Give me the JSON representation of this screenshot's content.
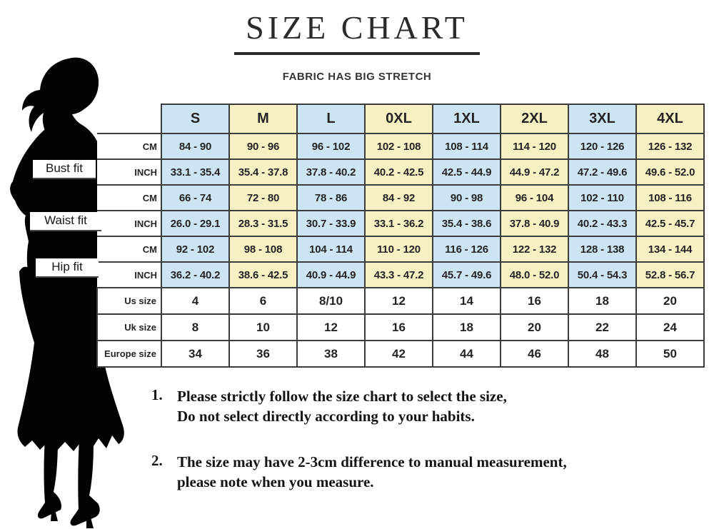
{
  "page": {
    "title": "SIZE CHART",
    "subtitle": "FABRIC HAS BIG STRETCH"
  },
  "colors": {
    "column_blue": "#cde4f3",
    "column_yellow": "#f6f0c3",
    "grid_border": "#3c3c3c",
    "silhouette": "#000000"
  },
  "fit_labels": [
    {
      "id": "bust",
      "label": "Bust fit"
    },
    {
      "id": "waist",
      "label": "Waist fit"
    },
    {
      "id": "hip",
      "label": "Hip fit"
    }
  ],
  "chart_data": {
    "type": "table",
    "title": "SIZE CHART",
    "subtitle": "FABRIC HAS BIG STRETCH",
    "columns": [
      "S",
      "M",
      "L",
      "0XL",
      "1XL",
      "2XL",
      "3XL",
      "4XL"
    ],
    "rows": [
      {
        "group": "Bust fit",
        "unit": "CM",
        "values": [
          "84 - 90",
          "90 - 96",
          "96 - 102",
          "102 - 108",
          "108 - 114",
          "114 - 120",
          "120 - 126",
          "126 - 132"
        ]
      },
      {
        "group": "Bust fit",
        "unit": "INCH",
        "values": [
          "33.1 - 35.4",
          "35.4 - 37.8",
          "37.8 - 40.2",
          "40.2 - 42.5",
          "42.5 - 44.9",
          "44.9 - 47.2",
          "47.2 - 49.6",
          "49.6 - 52.0"
        ]
      },
      {
        "group": "Waist fit",
        "unit": "CM",
        "values": [
          "66 - 74",
          "72 - 80",
          "78 - 86",
          "84 - 92",
          "90 - 98",
          "96 - 104",
          "102 - 110",
          "108 - 116"
        ]
      },
      {
        "group": "Waist fit",
        "unit": "INCH",
        "values": [
          "26.0 - 29.1",
          "28.3 - 31.5",
          "30.7 - 33.9",
          "33.1 - 36.2",
          "35.4 - 38.6",
          "37.8 - 40.9",
          "40.2 - 43.3",
          "42.5 - 45.7"
        ]
      },
      {
        "group": "Hip fit",
        "unit": "CM",
        "values": [
          "92 - 102",
          "98 - 108",
          "104 - 114",
          "110 - 120",
          "116 - 126",
          "122 - 132",
          "128 - 138",
          "134 - 144"
        ]
      },
      {
        "group": "Hip fit",
        "unit": "INCH",
        "values": [
          "36.2 - 40.2",
          "38.6 - 42.5",
          "40.9 - 44.9",
          "43.3 - 47.2",
          "45.7 - 49.6",
          "48.0 - 52.0",
          "50.4 - 54.3",
          "52.8 - 56.7"
        ]
      },
      {
        "group": "",
        "unit": "Us size",
        "values": [
          "4",
          "6",
          "8/10",
          "12",
          "14",
          "16",
          "18",
          "20"
        ]
      },
      {
        "group": "",
        "unit": "Uk size",
        "values": [
          "8",
          "10",
          "12",
          "16",
          "18",
          "20",
          "22",
          "24"
        ]
      },
      {
        "group": "",
        "unit": "Europe size",
        "values": [
          "34",
          "36",
          "38",
          "42",
          "44",
          "46",
          "48",
          "50"
        ]
      }
    ]
  },
  "notes": [
    {
      "number": "1.",
      "lines": [
        "Please strictly follow the size chart to select the size,",
        "Do not select directly according to your habits."
      ]
    },
    {
      "number": "2.",
      "lines": [
        "The size may have 2-3cm difference  to manual measurement,",
        "please note when you measure."
      ]
    }
  ]
}
